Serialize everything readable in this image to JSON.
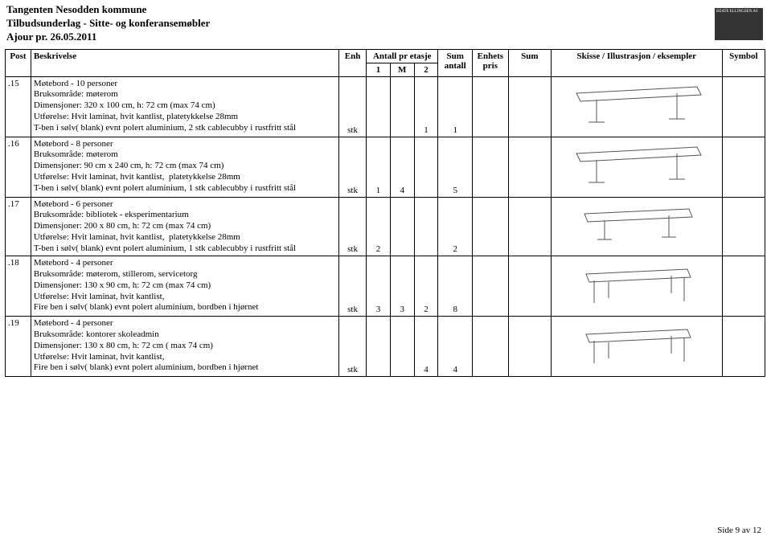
{
  "header": {
    "line1": "Tangenten Nesodden kommune",
    "line2": "Tilbudsunderlag - Sitte- og konferansemøbler",
    "line3": "Ajour pr. 26.05.2011"
  },
  "logo": {
    "text": "BEATE ELLINGSEN AS"
  },
  "columns": {
    "antall_group": "Antall pr etasje",
    "post": "Post",
    "beskrivelse": "Beskrivelse",
    "enh": "Enh",
    "c1": "1",
    "cM": "M",
    "c2": "2",
    "sum_antall": "Sum antall",
    "enhets_pris": "Enhets pris",
    "sum": "Sum",
    "skisse": "Skisse / Illustrasjon / eksempler",
    "symbol": "Symbol"
  },
  "rows": [
    {
      "post": ".15",
      "title": "Møtebord - 10 personer",
      "bruks": "Bruksområde: møterom",
      "dim": "Dimensjoner: 320 x 100 cm, h: 72 cm (max 74 cm)",
      "utf": "Utførelse: Hvit laminat, hvit kantlist, platetykkelse 28mm",
      "ekstra": "T-ben i sølv( blank) evnt polert aluminium, 2 stk cablecubby i rustfritt stål",
      "enh": "stk",
      "v1": "",
      "vM": "",
      "v2": "1",
      "sumant": "1",
      "sketch": "long-t-legs"
    },
    {
      "post": ".16",
      "title": "Møtebord - 8 personer",
      "bruks": "Bruksområde: møterom",
      "dim": "Dimensjoner: 90 cm x 240 cm, h: 72 cm (max 74 cm)",
      "utf": "Utførelse: Hvit laminat, hvit kantlist,  platetykkelse 28mm",
      "ekstra": "T-ben i sølv( blank) evnt polert aluminium, 1 stk cablecubby i rustfritt stål",
      "enh": "stk",
      "v1": "1",
      "vM": "4",
      "v2": "",
      "sumant": "5",
      "sketch": "long-t-legs"
    },
    {
      "post": ".17",
      "title": "Møtebord - 6 personer",
      "bruks": "Bruksområde: bibliotek - eksperimentarium",
      "dim": "Dimensjoner: 200 x 80 cm, h: 72 cm (max 74 cm)",
      "utf": "Utførelse: Hvit laminat, hvit kantlist,  platetykkelse 28mm",
      "ekstra": "T-ben i sølv( blank) evnt polert aluminium, 1 stk cablecubby i rustfritt stål",
      "enh": "stk",
      "v1": "2",
      "vM": "",
      "v2": "",
      "sumant": "2",
      "sketch": "mid-t-legs"
    },
    {
      "post": ".18",
      "title": "Møtebord - 4 personer",
      "bruks": "Bruksområde: møterom, stillerom, servicetorg",
      "dim": "Dimensjoner: 130 x 90 cm, h: 72 cm (max 74 cm)",
      "utf": "Utførelse: Hvit laminat, hvit kantlist,",
      "ekstra": "Fire ben i sølv( blank) evnt polert aluminium, bordben i hjørnet",
      "enh": "stk",
      "v1": "3",
      "vM": "3",
      "v2": "2",
      "sumant": "8",
      "sketch": "four-legs"
    },
    {
      "post": ".19",
      "title": "Møtebord - 4 personer",
      "bruks": "Bruksområde: kontorer skoleadmin",
      "dim": "Dimensjoner: 130 x 80 cm, h: 72 cm ( max 74 cm)",
      "utf": "Utførelse: Hvit laminat, hvit kantlist,",
      "ekstra": "Fire ben i sølv( blank) evnt polert aluminium, bordben i hjørnet",
      "enh": "stk",
      "v1": "",
      "vM": "",
      "v2": "4",
      "sumant": "4",
      "sketch": "four-legs"
    }
  ],
  "footer": {
    "page": "Side 9 av 12"
  },
  "style": {
    "line_color": "#000000",
    "sketch_stroke": "#555555"
  }
}
